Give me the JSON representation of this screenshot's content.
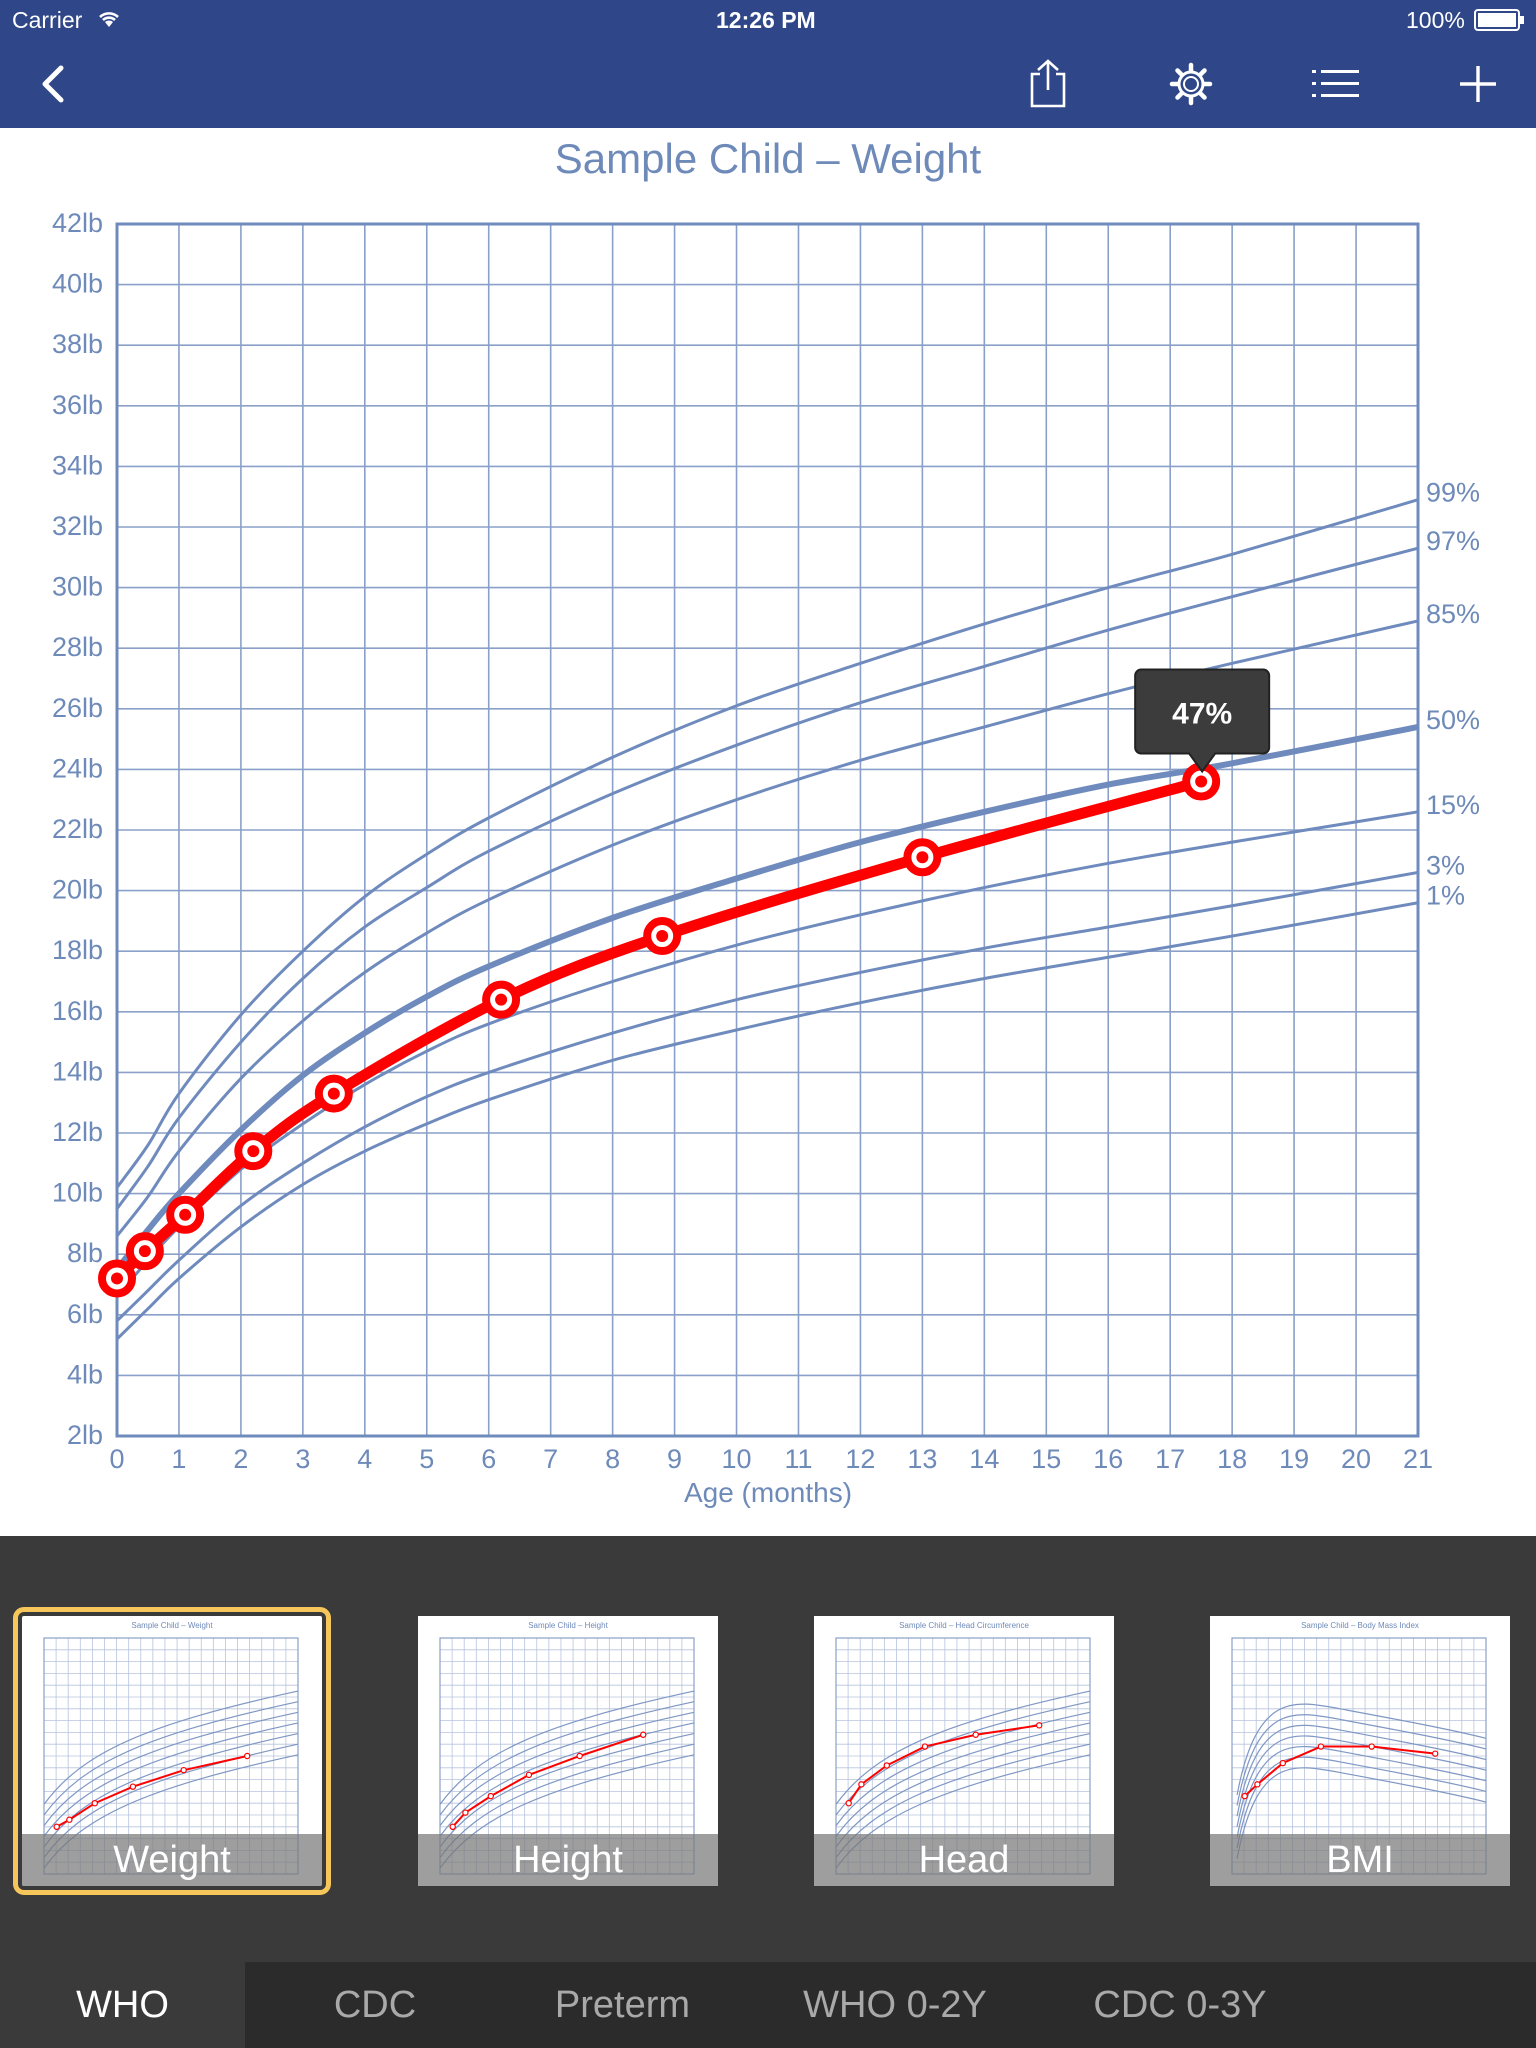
{
  "status_bar": {
    "carrier": "Carrier",
    "time": "12:26 PM",
    "battery": "100%"
  },
  "toolbar": {
    "icons": [
      "back-chevron-icon",
      "share-icon",
      "gear-icon",
      "list-icon",
      "plus-icon"
    ],
    "color": "#2f4789"
  },
  "chart_data": {
    "type": "line",
    "title": "Sample Child – Weight",
    "xlabel": "Age (months)",
    "ylabel": "",
    "xlim": [
      0,
      21
    ],
    "ylim": [
      2,
      42
    ],
    "x_ticks": [
      "0",
      "1",
      "2",
      "3",
      "4",
      "5",
      "6",
      "7",
      "8",
      "9",
      "10",
      "11",
      "12",
      "13",
      "14",
      "15",
      "16",
      "17",
      "18",
      "19",
      "20",
      "21"
    ],
    "y_ticks": [
      "2lb",
      "4lb",
      "6lb",
      "8lb",
      "10lb",
      "12lb",
      "14lb",
      "16lb",
      "18lb",
      "20lb",
      "22lb",
      "24lb",
      "26lb",
      "28lb",
      "30lb",
      "32lb",
      "34lb",
      "36lb",
      "38lb",
      "40lb",
      "42lb"
    ],
    "grid": true,
    "percentile_curves": [
      {
        "label": "99%",
        "x": [
          0,
          0.5,
          1,
          2,
          3,
          4,
          5,
          6,
          8,
          10,
          12,
          14,
          16,
          18,
          21
        ],
        "y": [
          10.2,
          11.6,
          13.3,
          15.9,
          18.0,
          19.8,
          21.2,
          22.4,
          24.4,
          26.1,
          27.5,
          28.8,
          30.0,
          31.1,
          32.9
        ]
      },
      {
        "label": "97%",
        "x": [
          0,
          0.5,
          1,
          2,
          3,
          4,
          5,
          6,
          8,
          10,
          12,
          14,
          16,
          18,
          21
        ],
        "y": [
          9.5,
          10.9,
          12.5,
          15.0,
          17.1,
          18.8,
          20.1,
          21.3,
          23.2,
          24.8,
          26.2,
          27.4,
          28.6,
          29.7,
          31.3
        ]
      },
      {
        "label": "85%",
        "x": [
          0,
          0.5,
          1,
          2,
          3,
          4,
          5,
          6,
          8,
          10,
          12,
          14,
          16,
          18,
          21
        ],
        "y": [
          8.6,
          9.9,
          11.4,
          13.8,
          15.7,
          17.3,
          18.6,
          19.7,
          21.5,
          23.0,
          24.3,
          25.4,
          26.5,
          27.5,
          28.9
        ]
      },
      {
        "label": "50%",
        "x": [
          0,
          0.5,
          1,
          2,
          3,
          4,
          5,
          6,
          8,
          10,
          12,
          14,
          16,
          18,
          21
        ],
        "y": [
          7.5,
          8.8,
          10.0,
          12.1,
          13.9,
          15.3,
          16.5,
          17.5,
          19.1,
          20.4,
          21.6,
          22.6,
          23.5,
          24.2,
          25.4
        ]
      },
      {
        "label": "15%",
        "x": [
          0,
          0.5,
          1,
          2,
          3,
          4,
          5,
          6,
          8,
          10,
          12,
          14,
          16,
          18,
          21
        ],
        "y": [
          6.6,
          7.8,
          8.9,
          10.8,
          12.3,
          13.6,
          14.7,
          15.6,
          17.0,
          18.2,
          19.2,
          20.1,
          20.9,
          21.6,
          22.6
        ]
      },
      {
        "label": "3%",
        "x": [
          0,
          0.5,
          1,
          2,
          3,
          4,
          5,
          6,
          8,
          10,
          12,
          14,
          16,
          18,
          21
        ],
        "y": [
          5.8,
          6.8,
          7.8,
          9.6,
          11.0,
          12.2,
          13.2,
          14.0,
          15.3,
          16.4,
          17.3,
          18.1,
          18.8,
          19.5,
          20.6
        ]
      },
      {
        "label": "1%",
        "x": [
          0,
          0.5,
          1,
          2,
          3,
          4,
          5,
          6,
          8,
          10,
          12,
          14,
          16,
          18,
          21
        ],
        "y": [
          5.2,
          6.2,
          7.2,
          8.9,
          10.3,
          11.4,
          12.3,
          13.1,
          14.4,
          15.4,
          16.3,
          17.1,
          17.8,
          18.5,
          19.6
        ]
      }
    ],
    "series": [
      {
        "x": [
          0,
          0.45,
          1.1,
          2.2,
          3.5,
          6.2,
          8.8,
          13.0,
          17.5
        ],
        "y": [
          7.2,
          8.1,
          9.3,
          11.4,
          13.3,
          16.4,
          18.5,
          21.1,
          23.6
        ],
        "color": "#ff0000"
      }
    ],
    "callout": {
      "label": "47%",
      "x": 17.5,
      "y": 23.6
    }
  },
  "thumbnails": [
    {
      "label": "Weight",
      "title": "Sample Child – Weight",
      "selected": true
    },
    {
      "label": "Height",
      "title": "Sample Child – Height",
      "selected": false
    },
    {
      "label": "Head",
      "title": "Sample Child – Head Circumference",
      "selected": false
    },
    {
      "label": "BMI",
      "title": "Sample Child – Body Mass Index",
      "selected": false
    }
  ],
  "tabs": [
    {
      "label": "WHO",
      "active": true
    },
    {
      "label": "CDC",
      "active": false
    },
    {
      "label": "Preterm",
      "active": false
    },
    {
      "label": "WHO 0-2Y",
      "active": false
    },
    {
      "label": "CDC 0-3Y",
      "active": false
    }
  ]
}
